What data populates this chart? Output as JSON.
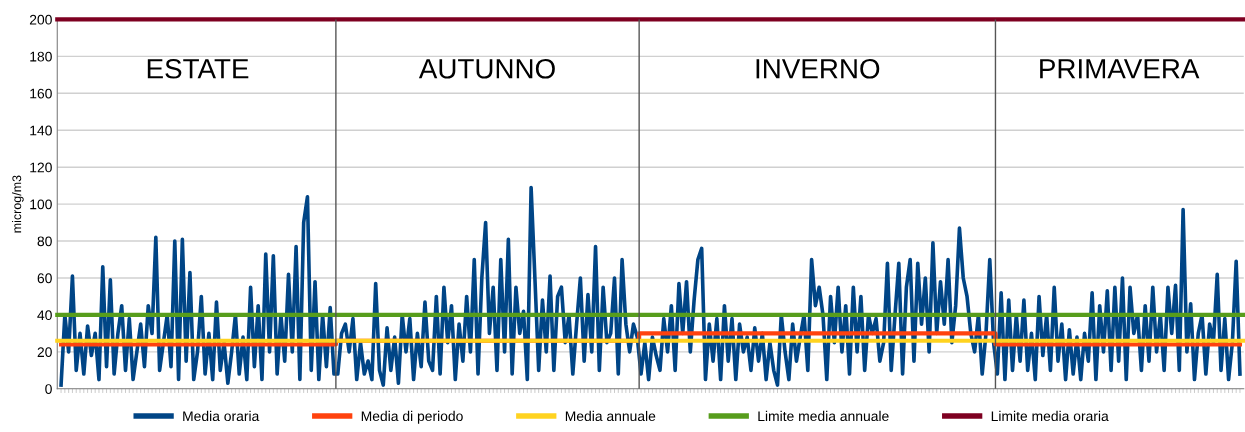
{
  "chart_data": {
    "type": "line",
    "ylabel": "microg/m3",
    "ylim": [
      0,
      200
    ],
    "yticks": [
      0,
      20,
      40,
      60,
      80,
      100,
      120,
      140,
      160,
      180,
      200
    ],
    "grid": "y",
    "legend": "bottom",
    "annotations": [
      "ESTATE",
      "AUTUNNO",
      "INVERNO",
      "PRIMAVERA"
    ],
    "categories": [
      null,
      null,
      null,
      null,
      null,
      null,
      null,
      null,
      null,
      null,
      null,
      null,
      null,
      null,
      null,
      null,
      null,
      null,
      null,
      null,
      null,
      null,
      null,
      null,
      null,
      null,
      null,
      null,
      null,
      null,
      null,
      null,
      null,
      null,
      null,
      null,
      null,
      null,
      null,
      null,
      null,
      null,
      null,
      null,
      null,
      null,
      null,
      null,
      null,
      null,
      null,
      null,
      null,
      null,
      null,
      null,
      null,
      null,
      null,
      null,
      null,
      null,
      null,
      null,
      null,
      null,
      null,
      null,
      null,
      null,
      null,
      null,
      null,
      null,
      null,
      null,
      null,
      null,
      null,
      null,
      null,
      null,
      null,
      null,
      null,
      null,
      null,
      null,
      null,
      null,
      null,
      null,
      null,
      null,
      null,
      null,
      null,
      null,
      null,
      null,
      null,
      null,
      null,
      null,
      null,
      null,
      null,
      null,
      null,
      null,
      null,
      null,
      null,
      null,
      null,
      null,
      null,
      null,
      null,
      null,
      null,
      null,
      null,
      null,
      null,
      null,
      null,
      null,
      null,
      null,
      null,
      null,
      null,
      null,
      null,
      null,
      null,
      null,
      null,
      null,
      null,
      null,
      null,
      null,
      null,
      null,
      null,
      null,
      null,
      null,
      null,
      null,
      null,
      null,
      null,
      null,
      null,
      null,
      null,
      null,
      null,
      null,
      null,
      null,
      null,
      null,
      null,
      null,
      null,
      null,
      null,
      null,
      null,
      null,
      null,
      null,
      null,
      null,
      null,
      null,
      null,
      null,
      null,
      null,
      null,
      null,
      null,
      null,
      null,
      null,
      null,
      null,
      null,
      null,
      null,
      null,
      null,
      null,
      null,
      null,
      null,
      null,
      null,
      null,
      null,
      null,
      null,
      null,
      null,
      null,
      null,
      null,
      null,
      null,
      null,
      null,
      null,
      null,
      null,
      null,
      null,
      null,
      null,
      null,
      null,
      null,
      null,
      null,
      null,
      null,
      null,
      null,
      null,
      null,
      null,
      null,
      null,
      null,
      null,
      null,
      null,
      null,
      null,
      null,
      null,
      null,
      null,
      null,
      null,
      null,
      null,
      null,
      null,
      null,
      null,
      null,
      null,
      null,
      null,
      null,
      null,
      null,
      null,
      null,
      null,
      null,
      null,
      null,
      null,
      null,
      null,
      null,
      null,
      null,
      null,
      null,
      null,
      null,
      null,
      null,
      null,
      null,
      null,
      null,
      null,
      null,
      null,
      null,
      null,
      null,
      null,
      null,
      null,
      null,
      null,
      null,
      null,
      null,
      null,
      null,
      null,
      null,
      null,
      null,
      null,
      null,
      null,
      null,
      null,
      null,
      null,
      null
    ],
    "series": [
      {
        "name": "Media oraria",
        "color": "#004586",
        "values": [
          2,
          40,
          20,
          61,
          10,
          30,
          8,
          34,
          18,
          30,
          5,
          66,
          12,
          59,
          8,
          30,
          45,
          10,
          38,
          5,
          20,
          35,
          12,
          45,
          30,
          82,
          10,
          25,
          40,
          12,
          80,
          5,
          81,
          15,
          63,
          5,
          20,
          50,
          8,
          30,
          5,
          47,
          10,
          25,
          3,
          20,
          40,
          8,
          28,
          5,
          55,
          12,
          45,
          5,
          73,
          20,
          72,
          8,
          40,
          15,
          62,
          20,
          77,
          5,
          90,
          104,
          10,
          58,
          5,
          40,
          12,
          44,
          8,
          8,
          30,
          35,
          20,
          38,
          5,
          25,
          8,
          15,
          5,
          57,
          10,
          2,
          33,
          10,
          28,
          3,
          40,
          20,
          38,
          5,
          30,
          12,
          47,
          15,
          10,
          50,
          8,
          55,
          25,
          45,
          5,
          35,
          15,
          50,
          20,
          70,
          8,
          60,
          90,
          30,
          55,
          10,
          70,
          20,
          81,
          8,
          55,
          30,
          42,
          5,
          109,
          60,
          10,
          48,
          20,
          61,
          10,
          50,
          55,
          25,
          40,
          8,
          35,
          60,
          15,
          51,
          20,
          77,
          10,
          55,
          25,
          30,
          60,
          8,
          70,
          35,
          20,
          35,
          28,
          8,
          25,
          5,
          28,
          18,
          10,
          38,
          20,
          45,
          10,
          57,
          30,
          58,
          20,
          48,
          70,
          76,
          5,
          35,
          15,
          38,
          5,
          45,
          15,
          38,
          5,
          35,
          20,
          28,
          10,
          33,
          15,
          30,
          5,
          25,
          10,
          2,
          40,
          20,
          5,
          35,
          15,
          28,
          40,
          10,
          70,
          45,
          55,
          40,
          5,
          50,
          25,
          55,
          20,
          45,
          8,
          55,
          20,
          50,
          10,
          40,
          30,
          38,
          15,
          25,
          68,
          10,
          40,
          68,
          8,
          55,
          70,
          15,
          68,
          35,
          60,
          20,
          79,
          30,
          58,
          35,
          70,
          25,
          45,
          87,
          60,
          50,
          30,
          20,
          40,
          8,
          30,
          70,
          25,
          8,
          52,
          5,
          48,
          10,
          40,
          15,
          48,
          10,
          30,
          5,
          50,
          18,
          40,
          10,
          55,
          15,
          35,
          5,
          32,
          8,
          28,
          5,
          30,
          15,
          52,
          5,
          45,
          20,
          53,
          10,
          55,
          15,
          60,
          5,
          55,
          30,
          40,
          10,
          45,
          15,
          55,
          20,
          40,
          10,
          55,
          30,
          56,
          10,
          97,
          20,
          46,
          5,
          30,
          40,
          8,
          35,
          25,
          62,
          10,
          38,
          5,
          25,
          69,
          8
        ]
      },
      {
        "name": "Media di periodo",
        "type": "step",
        "color": "#ff420e",
        "values": [
          24,
          24,
          24,
          24,
          24,
          24,
          24,
          24,
          24,
          24,
          24,
          24,
          24,
          24,
          24,
          24,
          24,
          24,
          24,
          24,
          24,
          24,
          24,
          24,
          24,
          24,
          24,
          24,
          24,
          24,
          24,
          24,
          24,
          24,
          24,
          24,
          24,
          24,
          24,
          24,
          24,
          24,
          24,
          24,
          24,
          24,
          24,
          24,
          24,
          24,
          24,
          24,
          24,
          24,
          24,
          24,
          24,
          24,
          24,
          24,
          24,
          24,
          24,
          24,
          24,
          24,
          24,
          24,
          24,
          24,
          24,
          24,
          24,
          26,
          26,
          26,
          26,
          26,
          26,
          26,
          26,
          26,
          26,
          26,
          26,
          26,
          26,
          26,
          26,
          26,
          26,
          26,
          26,
          26,
          26,
          26,
          26,
          26,
          26,
          26,
          26,
          26,
          26,
          26,
          26,
          26,
          26,
          26,
          26,
          26,
          26,
          26,
          26,
          26,
          26,
          26,
          26,
          26,
          26,
          26,
          26,
          26,
          26,
          26,
          26,
          26,
          26,
          26,
          26,
          26,
          26,
          26,
          26,
          26,
          26,
          26,
          26,
          26,
          26,
          26,
          26,
          26,
          26,
          26,
          26,
          26,
          26,
          26,
          26,
          26,
          26,
          26,
          26,
          30,
          30,
          30,
          30,
          30,
          30,
          30,
          30,
          30,
          30,
          30,
          30,
          30,
          30,
          30,
          30,
          30,
          30,
          30,
          30,
          30,
          30,
          30,
          30,
          30,
          30,
          30,
          30,
          30,
          30,
          30,
          30,
          30,
          30,
          30,
          30,
          30,
          30,
          30,
          30,
          30,
          30,
          30,
          30,
          30,
          30,
          30,
          30,
          30,
          30,
          30,
          30,
          30,
          30,
          30,
          30,
          30,
          30,
          30,
          30,
          30,
          30,
          30,
          30,
          30,
          30,
          30,
          30,
          30,
          30,
          30,
          30,
          30,
          30,
          30,
          30,
          30,
          30,
          30,
          30,
          30,
          30,
          30,
          30,
          30,
          30,
          30,
          30,
          30,
          30,
          30,
          30,
          30,
          30,
          24,
          24,
          24,
          24,
          24,
          24,
          24,
          24,
          24,
          24,
          24,
          24,
          24,
          24,
          24,
          24,
          24,
          24,
          24,
          24,
          24,
          24,
          24,
          24,
          24,
          24,
          24,
          24,
          24,
          24,
          24,
          24,
          24,
          24,
          24,
          24,
          24,
          24,
          24,
          24,
          24,
          24,
          24,
          24,
          24,
          24,
          24,
          24,
          24,
          24,
          24,
          24,
          24,
          24,
          24,
          24,
          24,
          24,
          24,
          24,
          24,
          24,
          24,
          24,
          24
        ]
      }
    ],
    "ref_lines": [
      {
        "axis": "y",
        "value": 26,
        "label": "Media annuale",
        "color": "#ffd320"
      },
      {
        "axis": "y",
        "value": 40,
        "label": "Limite media annuale",
        "color": "#579d1c"
      },
      {
        "axis": "y",
        "value": 200,
        "label": "Limite media oraria",
        "color": "#7e0021"
      }
    ]
  }
}
